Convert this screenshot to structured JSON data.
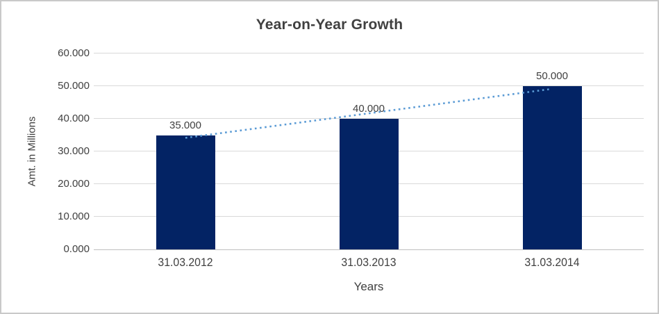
{
  "window": {
    "background": "#ffffff",
    "border_color": "#c9c9c9"
  },
  "chart_data": {
    "type": "bar",
    "title": "Year-on-Year Growth",
    "xlabel": "Years",
    "ylabel": "Amt. in Millions",
    "categories": [
      "31.03.2012",
      "31.03.2013",
      "31.03.2014"
    ],
    "values": [
      35,
      40,
      50
    ],
    "value_labels": [
      "35.000",
      "40.000",
      "50.000"
    ],
    "ylim": [
      0,
      60
    ],
    "ytick_labels": [
      "0.000",
      "10.000",
      "20.000",
      "30.000",
      "40.000",
      "50.000",
      "60.000"
    ],
    "grid": true,
    "legend": "none",
    "bar_color": "#032364",
    "gridline_color": "#d9d9d9",
    "axis_line_color": "#bfbfbf",
    "text_color": "#404040",
    "trendline": {
      "type": "linear",
      "style": "dotted",
      "color": "#5B9BD5"
    }
  }
}
